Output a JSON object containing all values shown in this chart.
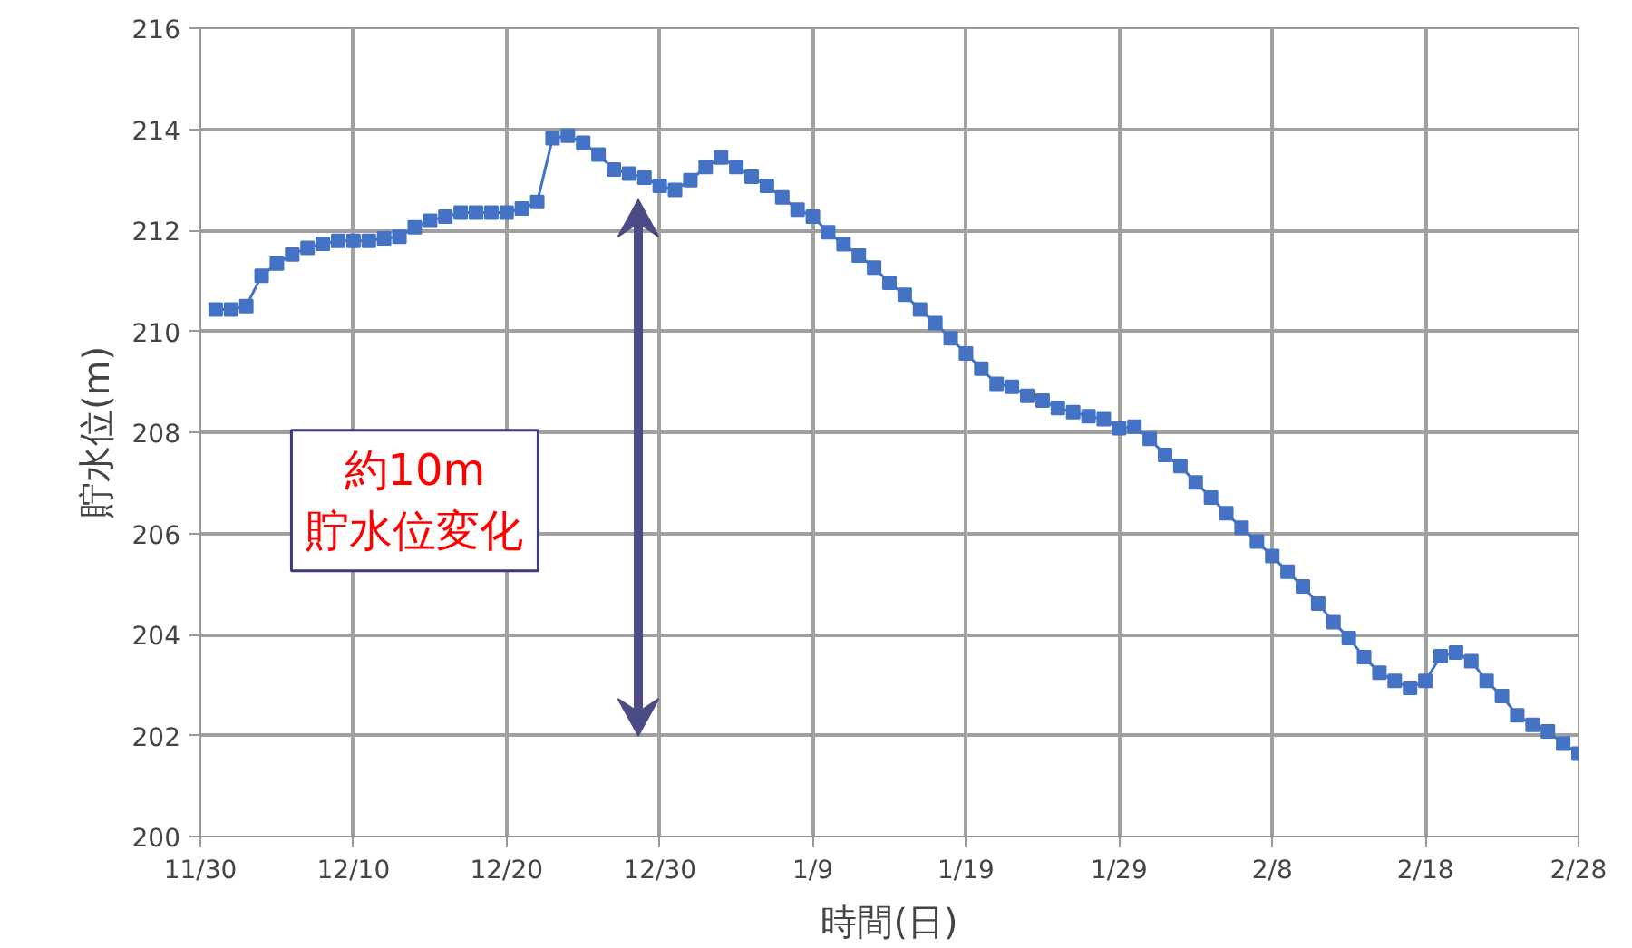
{
  "chart_data": {
    "type": "line",
    "xlabel": "時間(日)",
    "ylabel": "貯水位(m)",
    "categories": [
      "11/30",
      null,
      null,
      null,
      null,
      null,
      null,
      null,
      null,
      null,
      "12/10",
      null,
      null,
      null,
      null,
      null,
      null,
      null,
      null,
      null,
      "12/20",
      null,
      null,
      null,
      null,
      null,
      null,
      null,
      null,
      null,
      "12/30",
      null,
      null,
      null,
      null,
      null,
      null,
      null,
      null,
      null,
      "1/9",
      null,
      null,
      null,
      null,
      null,
      null,
      null,
      null,
      null,
      "1/19",
      null,
      null,
      null,
      null,
      null,
      null,
      null,
      null,
      null,
      "1/29",
      null,
      null,
      null,
      null,
      null,
      null,
      null,
      null,
      null,
      "2/8",
      null,
      null,
      null,
      null,
      null,
      null,
      null,
      null,
      null,
      "2/18",
      null,
      null,
      null,
      null,
      null,
      null,
      null,
      null,
      null,
      "2/28"
    ],
    "series": [
      {
        "color": "#4472c4",
        "values": [
          null,
          210.43,
          210.43,
          210.5,
          211.1,
          211.34,
          211.52,
          211.65,
          211.73,
          211.79,
          211.79,
          211.79,
          211.84,
          211.87,
          212.06,
          212.19,
          212.27,
          212.35,
          212.35,
          212.35,
          212.35,
          212.43,
          212.56,
          213.82,
          213.87,
          213.73,
          213.5,
          213.2,
          213.12,
          213.04,
          212.88,
          212.8,
          212.99,
          213.25,
          213.44,
          213.25,
          213.06,
          212.88,
          212.65,
          212.41,
          212.27,
          211.96,
          211.72,
          211.5,
          211.26,
          210.96,
          210.72,
          210.43,
          210.16,
          209.86,
          209.56,
          209.26,
          208.96,
          208.9,
          208.72,
          208.63,
          208.48,
          208.4,
          208.32,
          208.26,
          208.08,
          208.11,
          207.87,
          207.55,
          207.33,
          207.01,
          206.71,
          206.4,
          206.11,
          205.84,
          205.55,
          205.24,
          204.95,
          204.61,
          204.24,
          203.93,
          203.55,
          203.24,
          203.08,
          202.94,
          203.08,
          203.57,
          203.64,
          203.47,
          203.08,
          202.78,
          202.4,
          202.21,
          202.08,
          201.84,
          201.64
        ]
      }
    ],
    "ylim": [
      200,
      216
    ],
    "yticks": [
      200,
      202,
      204,
      206,
      208,
      210,
      212,
      214,
      216
    ],
    "grid": true,
    "marker": "square",
    "line_style": "solid",
    "annotations": [
      "約10m\n貯水位変化"
    ]
  }
}
